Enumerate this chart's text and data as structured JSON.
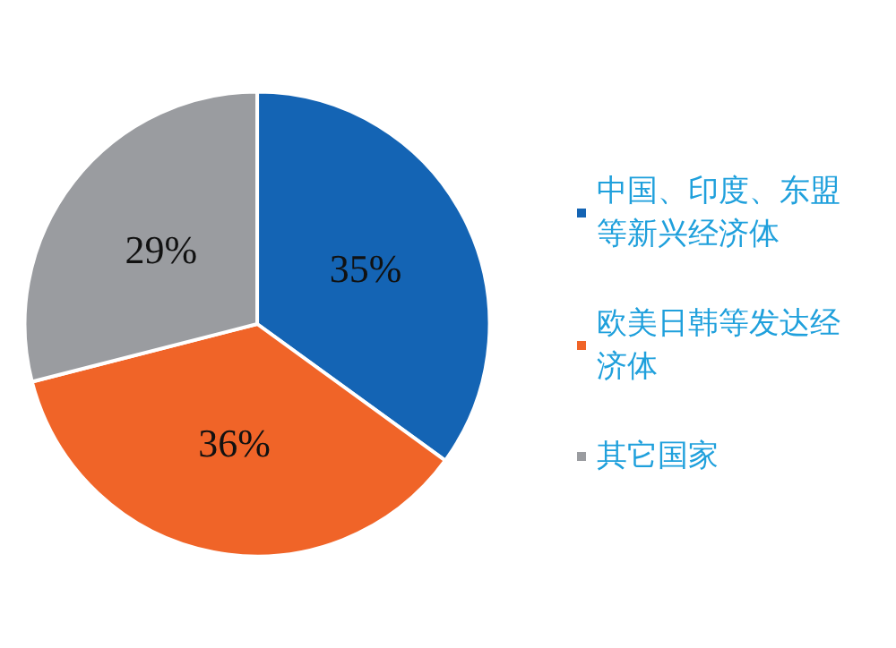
{
  "chart_data": {
    "type": "pie",
    "categories": [
      "中国、印度、东盟等新兴经济体",
      "欧美日韩等发达经济体",
      "其它国家"
    ],
    "values": [
      35,
      36,
      29
    ],
    "colors": [
      "#1464b4",
      "#f06428",
      "#9a9ca0"
    ],
    "value_labels": [
      "35%",
      "36%",
      "29%"
    ],
    "legend": "right"
  }
}
